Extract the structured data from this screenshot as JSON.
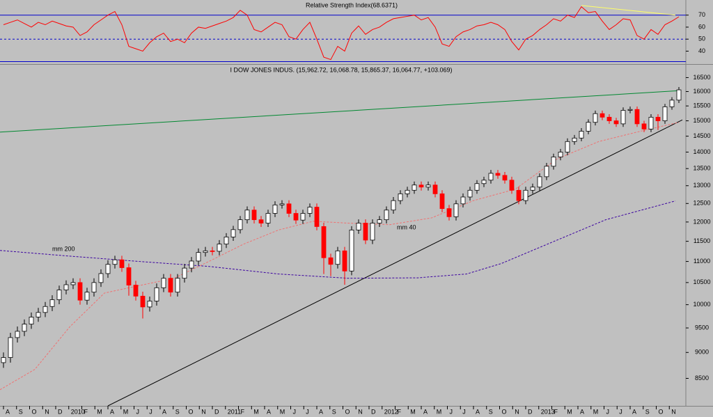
{
  "chart_data": [
    {
      "type": "line",
      "title": "Relative Strength Index(68.6371)",
      "color": "#ff0000",
      "values": [
        62,
        64,
        66,
        63,
        60,
        64,
        62,
        65,
        63,
        61,
        60,
        53,
        56,
        62,
        66,
        70,
        73,
        62,
        44,
        42,
        40,
        47,
        52,
        55,
        48,
        50,
        47,
        55,
        60,
        59,
        61,
        63,
        65,
        68,
        74,
        70,
        58,
        56,
        60,
        64,
        62,
        52,
        50,
        58,
        64,
        50,
        35,
        33,
        44,
        40,
        55,
        61,
        54,
        58,
        60,
        64,
        67,
        68,
        69,
        70,
        66,
        68,
        60,
        46,
        44,
        52,
        56,
        58,
        61,
        62,
        64,
        62,
        58,
        48,
        41,
        50,
        53,
        58,
        62,
        67,
        65,
        70,
        68,
        77,
        72,
        73,
        65,
        58,
        62,
        67,
        66,
        53,
        50,
        58,
        54,
        62,
        65,
        68.6
      ],
      "ylim": [
        31,
        82
      ],
      "yticks": [
        40,
        50,
        60,
        70
      ],
      "levels": [
        {
          "value": 70,
          "style": "solid"
        },
        {
          "value": 50,
          "style": "dashed"
        }
      ],
      "level_color": "#0000cc",
      "trendlines": [
        {
          "color": "#ffff66",
          "x": [
            83,
            96.5
          ],
          "values": [
            78,
            70
          ]
        }
      ]
    },
    {
      "type": "candlestick",
      "title": "I DOW JONES INDUS. (15,962.72, 16,068.78, 15,865.37, 16,064.77, +103.069)",
      "up_color": "#ffffff",
      "down_color": "#ff0000",
      "open": [
        8800,
        8900,
        9300,
        9430,
        9580,
        9730,
        9830,
        9960,
        10110,
        10330,
        10450,
        10500,
        10100,
        10280,
        10500,
        10710,
        10930,
        11040,
        10850,
        10440,
        10190,
        9950,
        10080,
        10380,
        10600,
        10280,
        10600,
        10840,
        11010,
        11220,
        11260,
        11250,
        11430,
        11610,
        11800,
        12060,
        12320,
        12060,
        11970,
        12230,
        12460,
        12490,
        12230,
        12050,
        12230,
        12400,
        11880,
        11090,
        10930,
        11260,
        10770,
        11790,
        11970,
        11530,
        11970,
        12060,
        12320,
        12580,
        12770,
        12870,
        13020,
        12960,
        13020,
        12770,
        12360,
        12140,
        12490,
        12680,
        12870,
        13060,
        13160,
        13360,
        13300,
        13160,
        12870,
        12580,
        12870,
        12960,
        13260,
        13570,
        13850,
        14000,
        14330,
        14440,
        14660,
        14950,
        15240,
        15120,
        15000,
        14900,
        15350,
        15380,
        14900,
        14730,
        15120,
        15000,
        15470,
        15700
      ],
      "high": [
        9000,
        9400,
        9530,
        9680,
        9830,
        9930,
        10060,
        10210,
        10430,
        10550,
        10600,
        10600,
        10380,
        10600,
        10810,
        11030,
        11140,
        11140,
        10950,
        10540,
        10290,
        10180,
        10480,
        10700,
        10700,
        10700,
        10940,
        11110,
        11320,
        11360,
        11360,
        11530,
        11710,
        11900,
        12160,
        12420,
        12420,
        12160,
        12330,
        12560,
        12590,
        12590,
        12330,
        12330,
        12500,
        12500,
        11980,
        11190,
        11360,
        11360,
        11890,
        12070,
        12070,
        12070,
        12160,
        12420,
        12680,
        12870,
        12970,
        13120,
        13120,
        13120,
        13120,
        12870,
        12460,
        12590,
        12780,
        12970,
        13160,
        13260,
        13460,
        13460,
        13400,
        13260,
        12970,
        12970,
        13060,
        13360,
        13670,
        13950,
        14100,
        14430,
        14540,
        14760,
        15050,
        15340,
        15340,
        15220,
        15100,
        15450,
        15480,
        15480,
        15000,
        15220,
        15220,
        15570,
        15800,
        16160
      ],
      "low": [
        8700,
        8800,
        9200,
        9330,
        9480,
        9630,
        9730,
        9860,
        10010,
        10230,
        10350,
        10000,
        10000,
        10180,
        10400,
        10610,
        10830,
        10750,
        10200,
        10090,
        9700,
        9850,
        9980,
        10280,
        10180,
        10180,
        10500,
        10740,
        10910,
        11120,
        11150,
        11150,
        11330,
        11510,
        11700,
        11960,
        11960,
        11870,
        11870,
        12130,
        12360,
        12130,
        11950,
        11950,
        12130,
        11780,
        10700,
        10650,
        10830,
        10450,
        10670,
        11690,
        11430,
        11430,
        11870,
        11960,
        12220,
        12480,
        12670,
        12770,
        12860,
        12860,
        12670,
        12260,
        12040,
        12040,
        12390,
        12580,
        12770,
        12960,
        13060,
        13200,
        13060,
        12770,
        12480,
        12480,
        12770,
        12860,
        13160,
        13470,
        13750,
        13900,
        14230,
        14340,
        14560,
        14850,
        15020,
        14900,
        14800,
        14800,
        15250,
        14800,
        14630,
        14630,
        14700,
        14900,
        15370,
        15600
      ],
      "close": [
        8900,
        9300,
        9430,
        9580,
        9730,
        9830,
        9960,
        10110,
        10330,
        10450,
        10500,
        10100,
        10280,
        10500,
        10710,
        10930,
        11040,
        10850,
        10440,
        10190,
        9950,
        10080,
        10380,
        10600,
        10280,
        10600,
        10840,
        11010,
        11220,
        11260,
        11250,
        11430,
        11610,
        11800,
        12060,
        12320,
        12060,
        11970,
        12230,
        12460,
        12490,
        12230,
        12050,
        12230,
        12400,
        11880,
        11090,
        10930,
        11260,
        10770,
        11790,
        11970,
        11530,
        11970,
        12060,
        12320,
        12580,
        12770,
        12870,
        13020,
        12960,
        13020,
        12770,
        12360,
        12140,
        12490,
        12680,
        12870,
        13060,
        13160,
        13360,
        13300,
        13160,
        12870,
        12580,
        12870,
        12960,
        13260,
        13570,
        13850,
        14000,
        14330,
        14440,
        14660,
        14950,
        15240,
        15120,
        15000,
        14900,
        15350,
        15380,
        14900,
        14730,
        15120,
        15000,
        15470,
        15700,
        16060
      ],
      "log_scale": true,
      "ylim": [
        8000,
        17000
      ],
      "yticks": [
        8500,
        9000,
        9500,
        10000,
        10500,
        11000,
        11500,
        12000,
        12500,
        13000,
        13500,
        14000,
        14500,
        15000,
        15500,
        16000,
        16500
      ],
      "x_labels": [
        "A",
        "S",
        "O",
        "N",
        "D",
        "2010",
        "F",
        "M",
        "A",
        "M",
        "J",
        "J",
        "A",
        "S",
        "O",
        "N",
        "D",
        "2011",
        "F",
        "M",
        "A",
        "M",
        "J",
        "J",
        "A",
        "S",
        "O",
        "N",
        "D",
        "2012",
        "F",
        "M",
        "A",
        "M",
        "J",
        "J",
        "A",
        "S",
        "O",
        "N",
        "D",
        "2013",
        "F",
        "M",
        "A",
        "M",
        "J",
        "J",
        "A",
        "S",
        "O",
        "N"
      ],
      "moving_averages": [
        {
          "name": "mm 200",
          "color": "#3a00a0",
          "x": [
            -0.5,
            9.5,
            19.5,
            29.5,
            39.5,
            49.5,
            59.5,
            66.5,
            71.5,
            79.5,
            86.5,
            96.5
          ],
          "values": [
            11270,
            11130,
            11000,
            10880,
            10700,
            10600,
            10610,
            10700,
            10950,
            11530,
            12060,
            12570
          ]
        },
        {
          "name": "mm 40",
          "color": "#f07070",
          "x": [
            -0.5,
            4.5,
            9.5,
            14.5,
            19.5,
            24.5,
            29.5,
            34.5,
            39.5,
            44.5,
            49.5,
            55.5,
            61.5,
            67.5,
            73.5,
            79.5,
            85.5,
            91.5,
            97
          ],
          "values": [
            8290,
            8670,
            9520,
            10260,
            10430,
            10600,
            11000,
            11430,
            11790,
            12020,
            11970,
            11930,
            12110,
            12580,
            12900,
            13790,
            14330,
            14660,
            14950
          ]
        }
      ],
      "trendlines": [
        {
          "color": "#008830",
          "x": [
            -0.5,
            97
          ],
          "values": [
            14630,
            16030
          ]
        },
        {
          "color": "#000000",
          "x": [
            15,
            97.5
          ],
          "values": [
            8000,
            15030
          ]
        }
      ]
    }
  ]
}
